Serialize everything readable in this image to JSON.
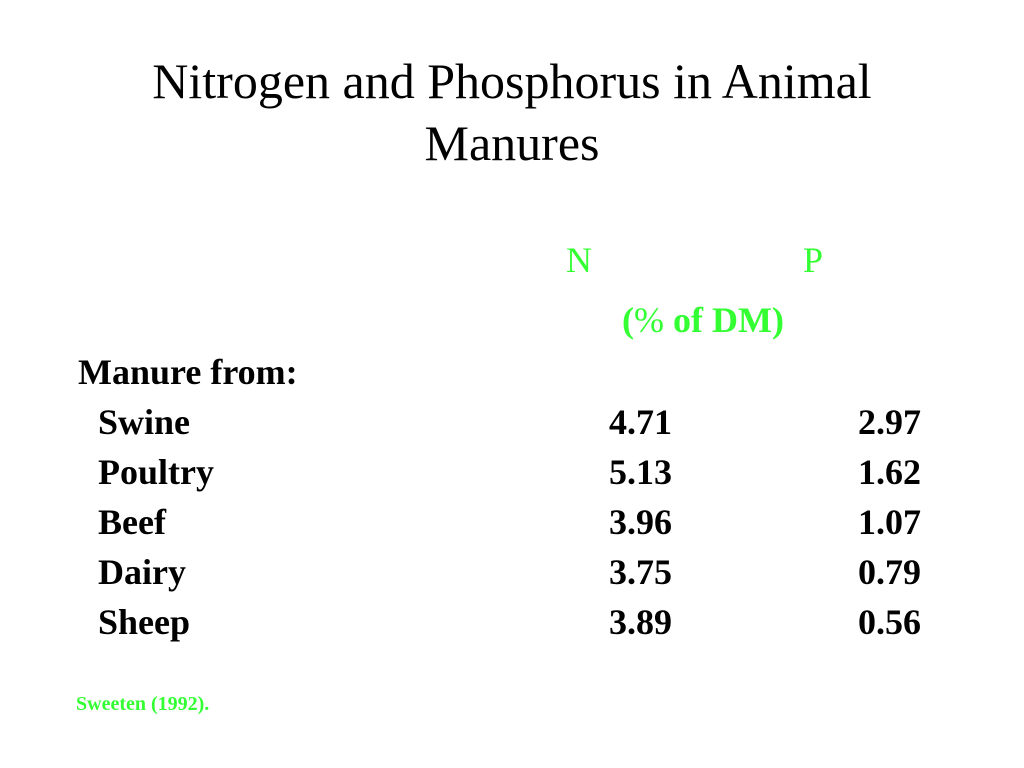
{
  "slide": {
    "title_line1": "Nitrogen and Phosphorus in Animal",
    "title_line2": "Manures",
    "column_n": "N",
    "column_p": "P",
    "unit_open": "(",
    "unit_pct": "%",
    "unit_rest": " of DM)",
    "section_label": "Manure from:",
    "rows": [
      {
        "name": "Swine",
        "n": "4.71",
        "p": "2.97"
      },
      {
        "name": "Poultry",
        "n": "5.13",
        "p": "1.62"
      },
      {
        "name": "Beef",
        "n": "3.96",
        "p": "1.07"
      },
      {
        "name": "Dairy",
        "n": "3.75",
        "p": "0.79"
      },
      {
        "name": "Sheep",
        "n": "3.89",
        "p": "0.56"
      }
    ],
    "source": "Sweeten (1992).",
    "colors": {
      "accent": "#33ff33",
      "text": "#000000",
      "background": "#ffffff"
    }
  }
}
